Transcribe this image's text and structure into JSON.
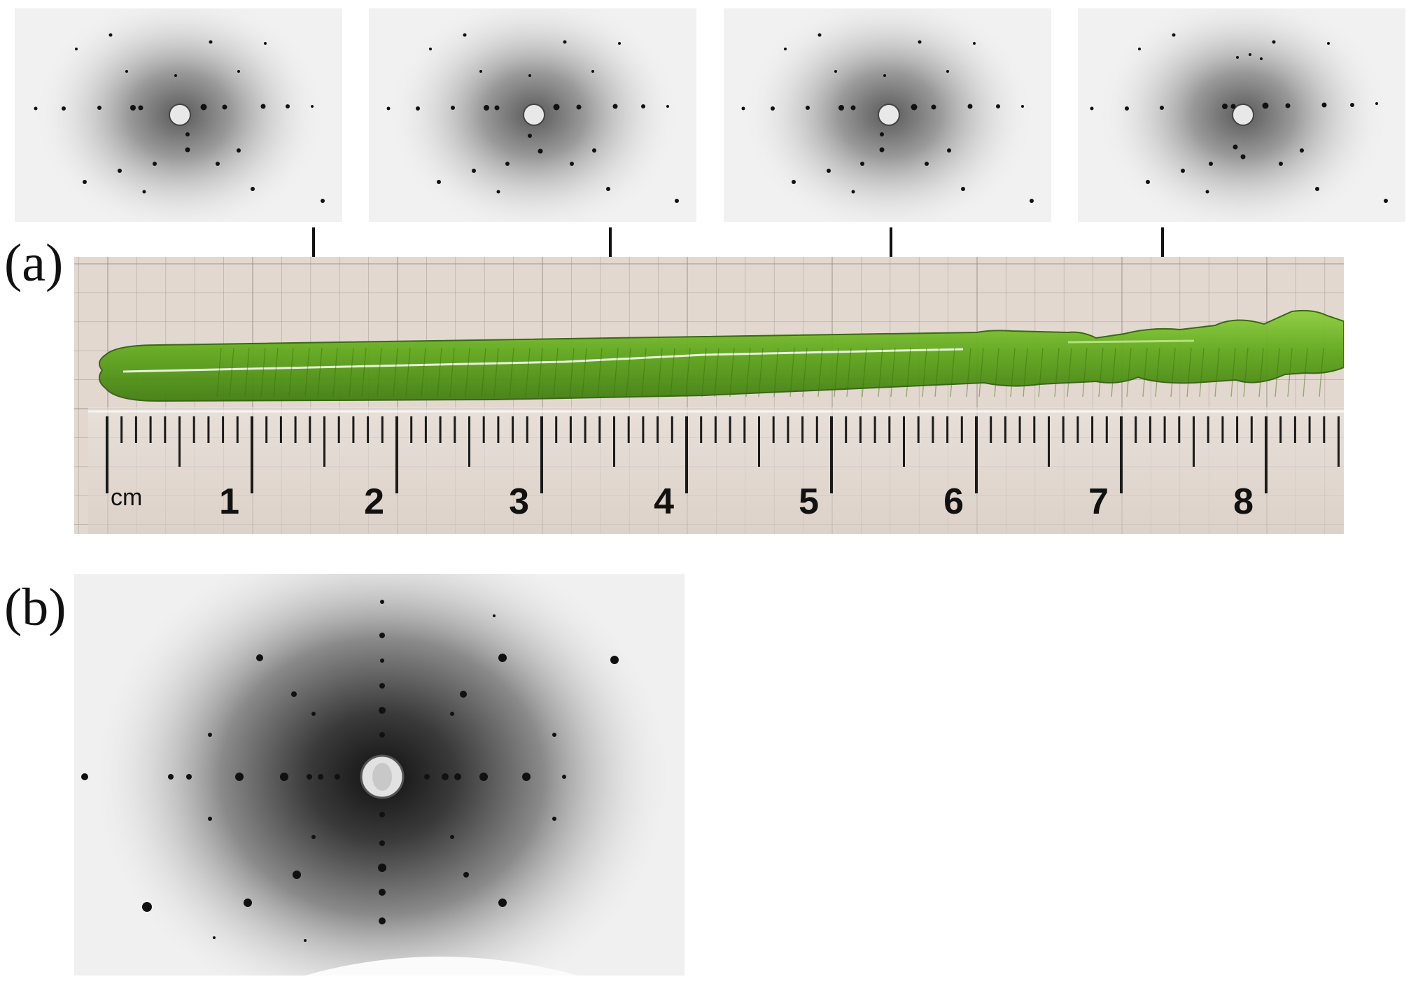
{
  "figure": {
    "panel_a_label": "(a)",
    "panel_b_label": "(b)",
    "ruler": {
      "unit": "cm",
      "numbers": [
        "1",
        "2",
        "3",
        "4",
        "5",
        "6",
        "7",
        "8"
      ]
    },
    "crystal_color": "#6fbf1f",
    "paper_color": "#e3d8cf",
    "grid_color": "#8f8a86"
  }
}
